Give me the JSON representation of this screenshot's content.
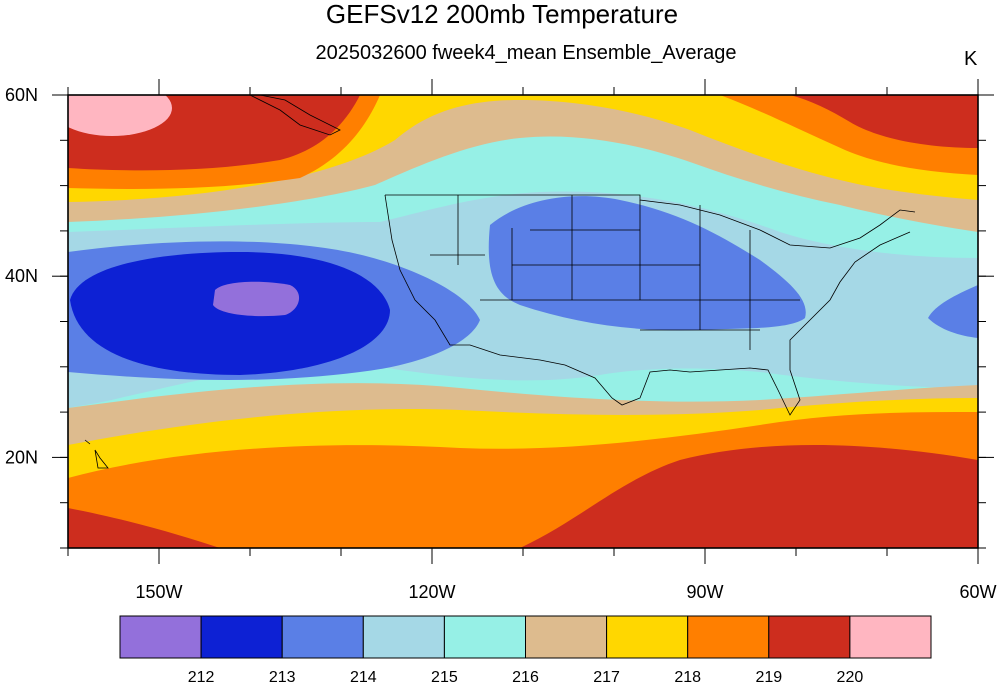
{
  "figure": {
    "title": "GEFSv12 200mb Temperature",
    "subtitle": "2025032600 fweek4_mean Ensemble_Average",
    "units": "K"
  },
  "map": {
    "projection": "cylindrical-equidistant",
    "lon_range": [
      -160,
      -60
    ],
    "lat_range": [
      10,
      60
    ],
    "x_ticks": [
      {
        "lon": -150,
        "label": "150W"
      },
      {
        "lon": -120,
        "label": "120W"
      },
      {
        "lon": -90,
        "label": "90W"
      },
      {
        "lon": -60,
        "label": "60W"
      }
    ],
    "y_ticks": [
      {
        "lat": 60,
        "label": "60N"
      },
      {
        "lat": 40,
        "label": "40N"
      },
      {
        "lat": 20,
        "label": "20N"
      }
    ]
  },
  "colorbar": {
    "colors": [
      "#9370db",
      "#0d21d4",
      "#5a7fe6",
      "#a5d8e6",
      "#96f0e6",
      "#ddbb8e",
      "#ffd700",
      "#ff7f00",
      "#cd2d1e",
      "#ffb6c1"
    ],
    "levels": [
      "212",
      "213",
      "214",
      "215",
      "216",
      "217",
      "218",
      "219",
      "220"
    ]
  },
  "field_features": [
    {
      "name": "cold-low-pacific",
      "lon": -140,
      "lat": 37,
      "value_range": "<212 K core"
    },
    {
      "name": "cold-trough-central-us",
      "lon": -100,
      "lat": 40,
      "value_range": "213-214 K"
    },
    {
      "name": "warm-tropical-band",
      "lon": -75,
      "lat": 15,
      "value_range": ">219 K"
    },
    {
      "name": "warm-ridge-alaska",
      "lon": -150,
      "lat": 58,
      "value_range": ">220 K"
    },
    {
      "name": "warm-ridge-north-atlantic",
      "lon": -75,
      "lat": 58,
      "value_range": "219-220 K"
    }
  ],
  "chart_data": {
    "type": "contour-map",
    "variable": "200mb Temperature",
    "units": "K",
    "contour_levels": [
      212,
      213,
      214,
      215,
      216,
      217,
      218,
      219,
      220
    ],
    "xlim": [
      -160,
      -60
    ],
    "ylim": [
      10,
      60
    ]
  }
}
